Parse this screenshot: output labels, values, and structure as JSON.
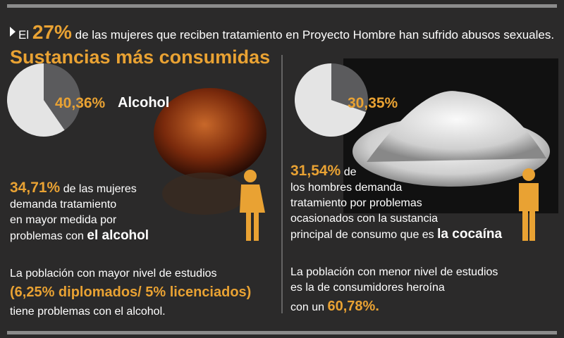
{
  "header": {
    "lead": "El",
    "highlight": "27%",
    "text": "de las mujeres que reciben tratamiento en Proyecto Hombre han sufrido abusos sexuales."
  },
  "title": "Sustancias más consumidas",
  "chart_data": [
    {
      "type": "pie",
      "categories": [
        "Alcohol",
        null
      ],
      "values": [
        40.36,
        59.64
      ],
      "value_labels": [
        "40,36%",
        null
      ],
      "colors": [
        "#5b5b5d",
        "#e4e4e4"
      ]
    },
    {
      "type": "pie",
      "categories": [
        null,
        null
      ],
      "values": [
        30.35,
        69.65
      ],
      "value_labels": [
        "30,35%",
        null
      ],
      "colors": [
        "#5b5b5d",
        "#e4e4e4"
      ]
    }
  ],
  "left": {
    "stat": "34,71%",
    "lines": [
      "de las mujeres",
      "demanda tratamiento",
      "en mayor medida por",
      "problemas con"
    ],
    "emphasis": "el alcohol",
    "study_1": "La población con mayor nivel de estudios",
    "study_highlight": "(6,25% diplomados/ 5% licenciados)",
    "study_2": "tiene problemas con el alcohol."
  },
  "right": {
    "stat": "31,54%",
    "lines": [
      "de",
      "los hombres demanda",
      "tratamiento por problemas",
      "ocasionados con la sustancia",
      "principal de consumo que es"
    ],
    "emphasis": "la cocaína",
    "study_1": "La población con menor nivel de estudios",
    "study_2": "es la de consumidores heroína",
    "study_3": "con un",
    "study_highlight": "60,78%."
  }
}
